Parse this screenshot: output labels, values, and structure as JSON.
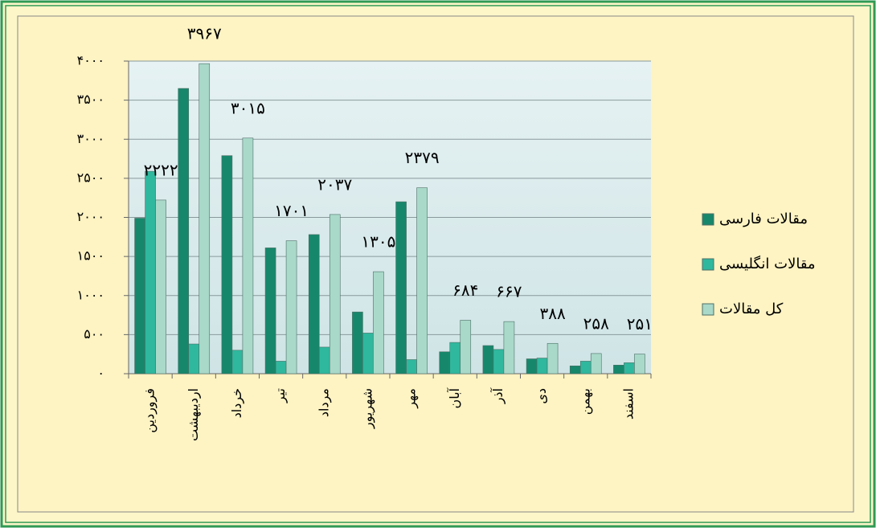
{
  "chart_data": {
    "type": "bar",
    "categories": [
      "فروردین",
      "اردیبهشت",
      "خرداد",
      "تیر",
      "مرداد",
      "شهریور",
      "مهر",
      "آبان",
      "آذر",
      "دی",
      "بهمن",
      "اسفند"
    ],
    "series": [
      {
        "name": "مقالات فارسی",
        "color": "#17876b",
        "values": [
          1990,
          3650,
          2790,
          1610,
          1780,
          790,
          2200,
          280,
          360,
          190,
          100,
          110
        ]
      },
      {
        "name": "مقالات انگلیسی",
        "color": "#2fb89e",
        "values": [
          2590,
          380,
          300,
          160,
          340,
          520,
          180,
          400,
          310,
          200,
          160,
          140
        ]
      },
      {
        "name": "کل مقالات",
        "color": "#a9d9c9",
        "values": [
          2222,
          3967,
          3015,
          1701,
          2037,
          1305,
          2379,
          684,
          667,
          388,
          258,
          251
        ],
        "value_labels": [
          "۲۲۲۲",
          "۳۹۶۷",
          "۳۰۱۵",
          "۱۷۰۱",
          "۲۰۳۷",
          "۱۳۰۵",
          "۲۳۷۹",
          "۶۸۴",
          "۶۶۷",
          "۳۸۸",
          "۲۵۸",
          "۲۵۱"
        ]
      }
    ],
    "ylim": [
      0,
      4000
    ],
    "yticks": [
      {
        "value": 0,
        "label": "۰"
      },
      {
        "value": 500,
        "label": "۵۰۰"
      },
      {
        "value": 1000,
        "label": "۱۰۰۰"
      },
      {
        "value": 1500,
        "label": "۱۵۰۰"
      },
      {
        "value": 2000,
        "label": "۲۰۰۰"
      },
      {
        "value": 2500,
        "label": "۲۵۰۰"
      },
      {
        "value": 3000,
        "label": "۳۰۰۰"
      },
      {
        "value": 3500,
        "label": "۳۵۰۰"
      },
      {
        "value": 4000,
        "label": "۴۰۰۰"
      }
    ],
    "grid": true,
    "legend": "right"
  }
}
